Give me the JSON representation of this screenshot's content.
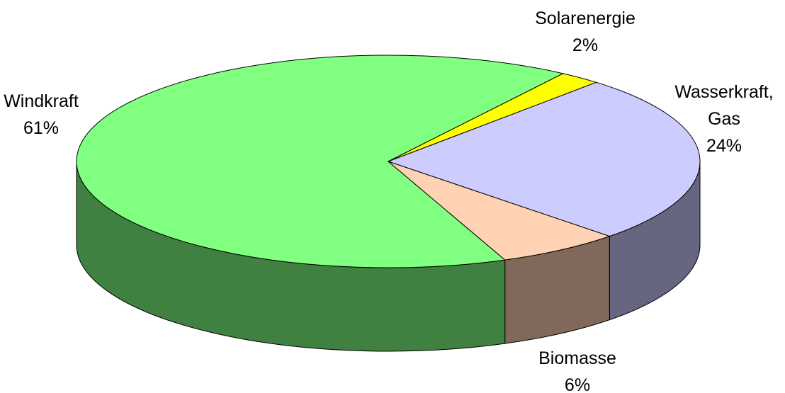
{
  "chart_data": {
    "type": "pie",
    "categories": [
      "Windkraft",
      "Solarenergie",
      "Wasserkraft, Gas",
      "Biomasse"
    ],
    "values": [
      61,
      2,
      24,
      6
    ],
    "value_labels": [
      "61%",
      "2%",
      "24%",
      "6%"
    ],
    "colors": [
      "#80ff80",
      "#ffff00",
      "#ccccff",
      "#ffd2b4"
    ]
  }
}
